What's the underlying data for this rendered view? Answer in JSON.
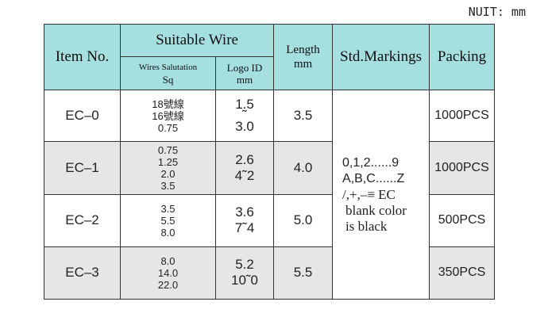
{
  "unit_label": "NUIT: mm",
  "headers": {
    "item_no": "Item No.",
    "suitable_wire": "Suitable Wire",
    "wires_salutation": "Wires Salutation",
    "sq": "Sq",
    "logo_id": "Logo ID",
    "logo_unit": "mm",
    "length": "Length",
    "length_unit": "mm",
    "std_markings": "Std.Markings",
    "packing": "Packing"
  },
  "rows": [
    {
      "item": "EC–0",
      "sq": [
        "18號線",
        "16號線",
        "0.75"
      ],
      "logo": [
        "1.5",
        "˜",
        "3.0"
      ],
      "length": "3.5",
      "packing": "1000PCS"
    },
    {
      "item": "EC–1",
      "sq": [
        "0.75",
        "1.25",
        "2.0",
        "3.5"
      ],
      "logo": [
        "2.6",
        "4˜2"
      ],
      "length": "4.0",
      "packing": "1000PCS"
    },
    {
      "item": "EC–2",
      "sq": [
        "3.5",
        "5.5",
        "8.0"
      ],
      "logo": [
        "3.6",
        "7˜4"
      ],
      "length": "5.0",
      "packing": "500PCS"
    },
    {
      "item": "EC–3",
      "sq": [
        "8.0",
        "14.0",
        "22.0"
      ],
      "logo": [
        "5.2",
        "10˜0"
      ],
      "length": "5.5",
      "packing": "350PCS"
    }
  ],
  "std_markings": {
    "line1": "0,1,2......9",
    "line2": "A,B,C......Z",
    "line3": "/,+,–≡  EC",
    "line4": "blank color",
    "line5": "is black"
  }
}
